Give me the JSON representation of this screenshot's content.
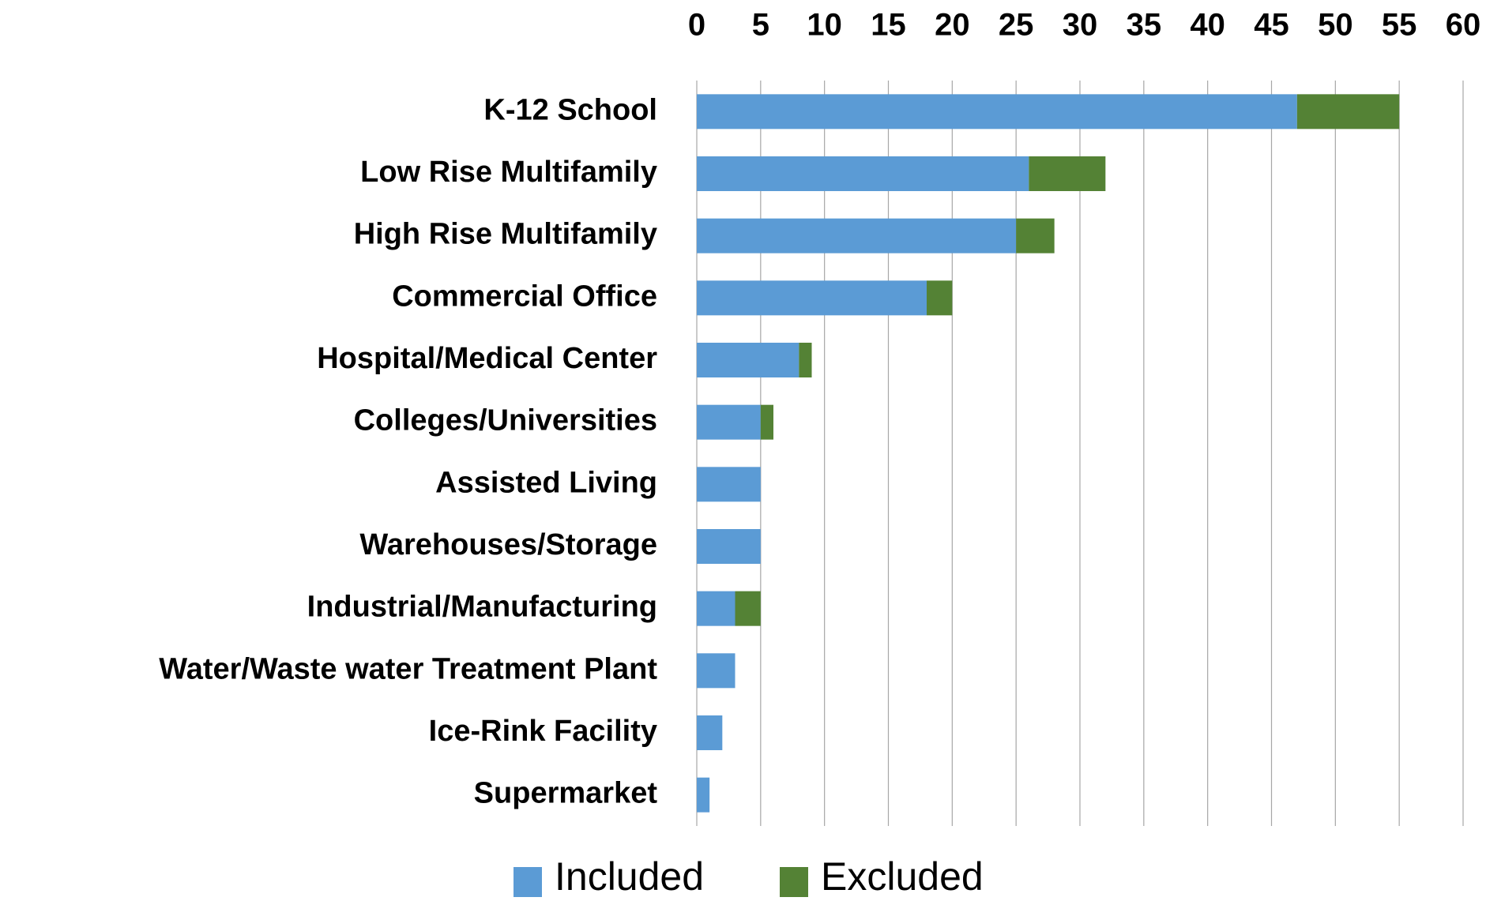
{
  "chart_data": {
    "type": "stacked_barh",
    "categories": [
      "K-12 School",
      "Low Rise Multifamily",
      "High Rise Multifamily",
      "Commercial Office",
      "Hospital/Medical Center",
      "Colleges/Universities",
      "Assisted Living",
      "Warehouses/Storage",
      "Industrial/Manufacturing",
      "Water/Waste water Treatment Plant",
      "Ice-Rink Facility",
      "Supermarket"
    ],
    "series": [
      {
        "name": "Included",
        "color": "#5b9bd5",
        "values": [
          47,
          26,
          25,
          18,
          8,
          5,
          5,
          5,
          3,
          3,
          2,
          1
        ]
      },
      {
        "name": "Excluded",
        "color": "#548235",
        "values": [
          8,
          6,
          3,
          2,
          1,
          1,
          0,
          0,
          2,
          0,
          0,
          0
        ]
      }
    ],
    "xlim": [
      0,
      60
    ],
    "xticks": [
      0,
      5,
      10,
      15,
      20,
      25,
      30,
      35,
      40,
      45,
      50,
      55,
      60
    ],
    "grid": true,
    "legend": "bottom"
  }
}
